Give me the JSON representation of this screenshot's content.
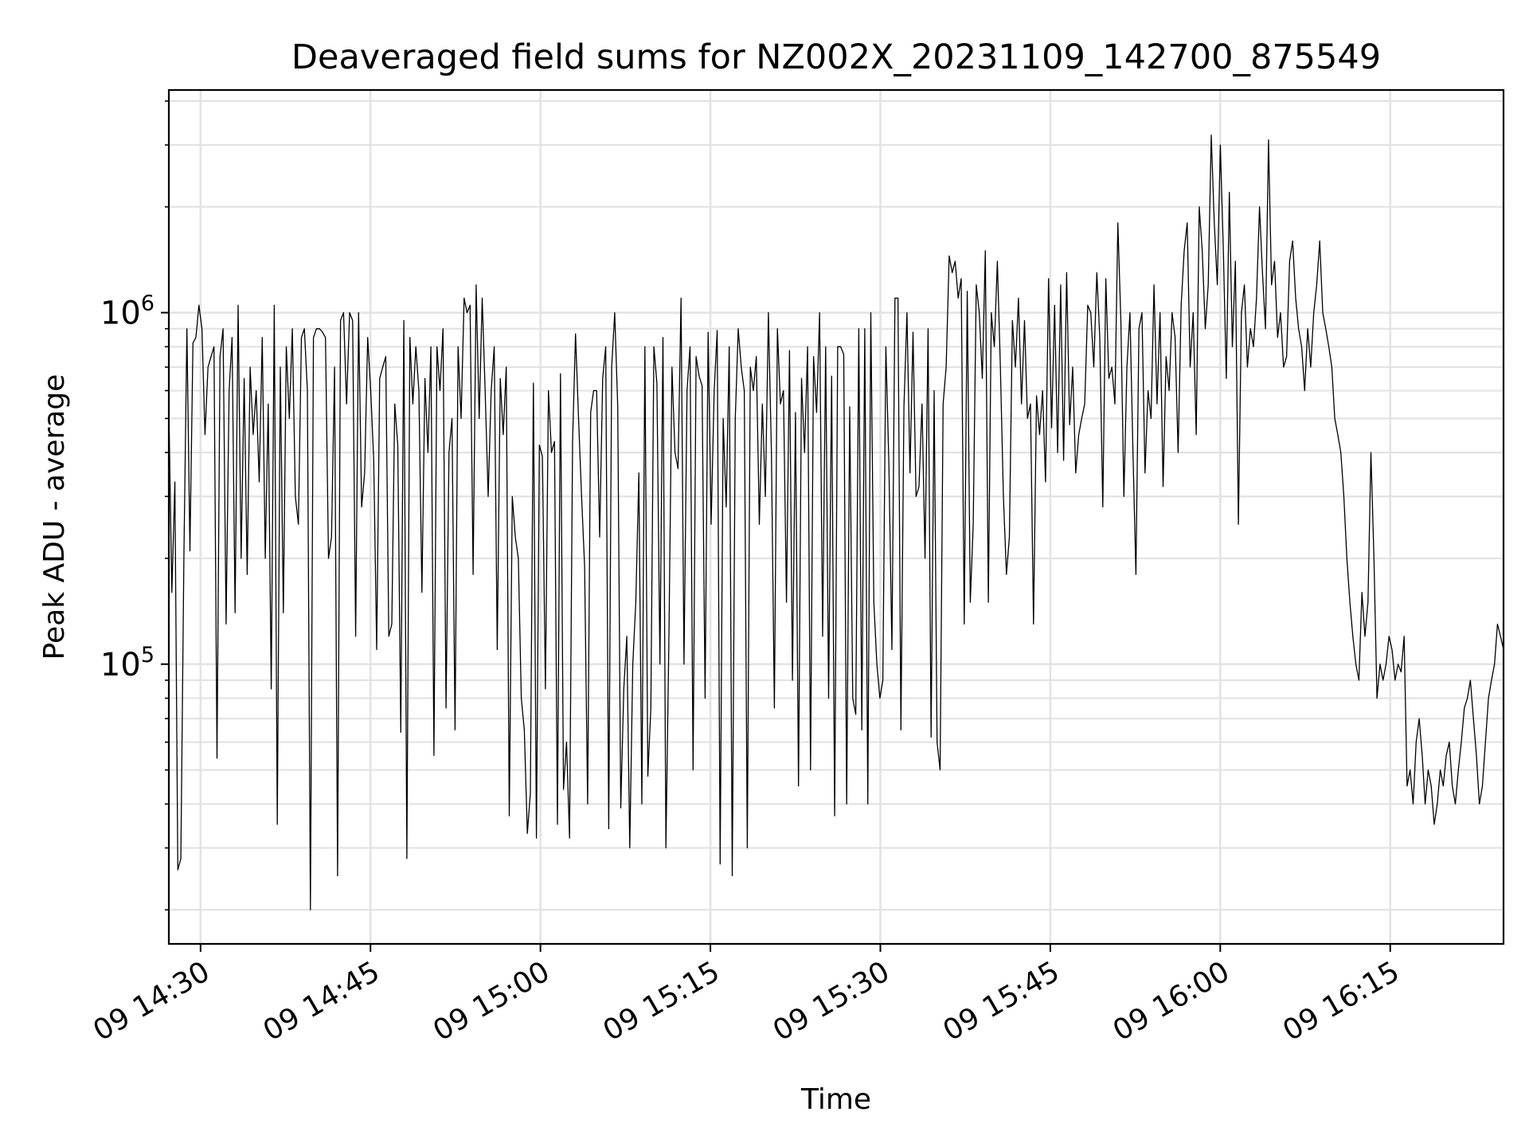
{
  "chart_data": {
    "type": "line",
    "title": "Deaveraged field sums for NZ002X_20231109_142700_875549",
    "xlabel": "Time",
    "ylabel": "Peak ADU - average",
    "xscale": "time",
    "yscale": "log",
    "xlim": [
      "2023-11-09 14:27:12",
      "2023-11-09 16:25:00"
    ],
    "ylim": [
      16000,
      4300000
    ],
    "grid": true,
    "legend": "none",
    "line_color": "#000000",
    "x_ticks": [
      {
        "time": "2023-11-09 14:30",
        "label": "09 14:30"
      },
      {
        "time": "2023-11-09 14:45",
        "label": "09 14:45"
      },
      {
        "time": "2023-11-09 15:00",
        "label": "09 15:00"
      },
      {
        "time": "2023-11-09 15:15",
        "label": "09 15:15"
      },
      {
        "time": "2023-11-09 15:30",
        "label": "09 15:30"
      },
      {
        "time": "2023-11-09 15:45",
        "label": "09 15:45"
      },
      {
        "time": "2023-11-09 16:00",
        "label": "09 16:00"
      },
      {
        "time": "2023-11-09 16:15",
        "label": "09 16:15"
      }
    ],
    "y_ticks": [
      {
        "value": 100000,
        "base": "10",
        "exp": "5"
      },
      {
        "value": 1000000,
        "base": "10",
        "exp": "6"
      }
    ],
    "series": [
      {
        "start": "2023-11-09 14:27:12",
        "end": "2023-11-09 16:25:00",
        "values": [
          540000,
          160000,
          330000,
          26000,
          28000,
          200000,
          900000,
          210000,
          820000,
          850000,
          1050000,
          900000,
          450000,
          700000,
          750000,
          800000,
          54000,
          750000,
          900000,
          130000,
          600000,
          850000,
          140000,
          1050000,
          200000,
          650000,
          180000,
          700000,
          450000,
          600000,
          330000,
          850000,
          200000,
          550000,
          85000,
          1050000,
          35000,
          700000,
          140000,
          800000,
          500000,
          900000,
          300000,
          250000,
          850000,
          900000,
          600000,
          20000,
          850000,
          900000,
          900000,
          880000,
          850000,
          200000,
          230000,
          700000,
          25000,
          950000,
          1000000,
          550000,
          1000000,
          950000,
          120000,
          1000000,
          280000,
          350000,
          850000,
          600000,
          380000,
          110000,
          650000,
          700000,
          750000,
          120000,
          130000,
          550000,
          420000,
          64000,
          950000,
          28000,
          850000,
          550000,
          800000,
          600000,
          160000,
          650000,
          400000,
          800000,
          55000,
          800000,
          600000,
          900000,
          75000,
          400000,
          500000,
          65000,
          800000,
          500000,
          1100000,
          1000000,
          1050000,
          180000,
          1200000,
          500000,
          1100000,
          600000,
          300000,
          600000,
          800000,
          110000,
          650000,
          450000,
          700000,
          37000,
          300000,
          230000,
          200000,
          80000,
          65000,
          33000,
          43000,
          630000,
          32000,
          420000,
          390000,
          85000,
          600000,
          400000,
          430000,
          35000,
          670000,
          44000,
          60000,
          32000,
          430000,
          870000,
          500000,
          300000,
          190000,
          40000,
          520000,
          600000,
          600000,
          230000,
          650000,
          800000,
          34000,
          700000,
          1000000,
          540000,
          39000,
          85000,
          120000,
          30000,
          100000,
          150000,
          350000,
          40000,
          800000,
          48000,
          75000,
          800000,
          630000,
          100000,
          850000,
          30000,
          120000,
          700000,
          400000,
          360000,
          1100000,
          100000,
          600000,
          800000,
          50000,
          750000,
          660000,
          620000,
          80000,
          880000,
          250000,
          600000,
          890000,
          27000,
          500000,
          280000,
          800000,
          25000,
          500000,
          900000,
          700000,
          600000,
          30000,
          700000,
          600000,
          750000,
          250000,
          550000,
          300000,
          1000000,
          400000,
          75000,
          900000,
          550000,
          600000,
          150000,
          780000,
          90000,
          520000,
          45000,
          650000,
          400000,
          800000,
          50000,
          750000,
          520000,
          1000000,
          120000,
          800000,
          80000,
          660000,
          37000,
          800000,
          800000,
          760000,
          40000,
          540000,
          80000,
          72000,
          900000,
          65000,
          900000,
          40000,
          1000000,
          150000,
          100000,
          80000,
          90000,
          800000,
          370000,
          110000,
          1100000,
          1100000,
          65000,
          540000,
          1000000,
          350000,
          880000,
          300000,
          320000,
          550000,
          200000,
          900000,
          62000,
          600000,
          60000,
          50000,
          550000,
          700000,
          1450000,
          1300000,
          1400000,
          1100000,
          1250000,
          130000,
          1150000,
          150000,
          250000,
          1200000,
          1000000,
          650000,
          1500000,
          150000,
          1000000,
          800000,
          1400000,
          700000,
          300000,
          180000,
          230000,
          950000,
          700000,
          1100000,
          550000,
          950000,
          500000,
          550000,
          130000,
          580000,
          450000,
          600000,
          330000,
          1250000,
          470000,
          1050000,
          400000,
          1200000,
          380000,
          1300000,
          480000,
          700000,
          350000,
          450000,
          500000,
          550000,
          1050000,
          1000000,
          700000,
          1300000,
          850000,
          280000,
          1250000,
          650000,
          700000,
          550000,
          1800000,
          950000,
          300000,
          700000,
          1000000,
          400000,
          180000,
          900000,
          1000000,
          350000,
          600000,
          500000,
          1200000,
          550000,
          1000000,
          320000,
          750000,
          600000,
          1000000,
          850000,
          400000,
          1050000,
          1500000,
          1800000,
          700000,
          1000000,
          450000,
          2000000,
          1500000,
          900000,
          1200000,
          3200000,
          1800000,
          1200000,
          3000000,
          1500000,
          650000,
          2200000,
          800000,
          1400000,
          250000,
          1000000,
          1200000,
          700000,
          900000,
          800000,
          1100000,
          2000000,
          1300000,
          900000,
          3100000,
          1200000,
          1400000,
          850000,
          1000000,
          700000,
          750000,
          1400000,
          1600000,
          1100000,
          900000,
          800000,
          600000,
          900000,
          700000,
          1000000,
          1200000,
          1600000,
          1000000,
          900000,
          800000,
          700000,
          500000,
          450000,
          400000,
          300000,
          200000,
          150000,
          120000,
          100000,
          90000,
          160000,
          120000,
          150000,
          400000,
          200000,
          80000,
          100000,
          90000,
          100000,
          120000,
          110000,
          90000,
          100000,
          95000,
          120000,
          45000,
          50000,
          40000,
          60000,
          70000,
          55000,
          40000,
          50000,
          45000,
          35000,
          40000,
          50000,
          45000,
          55000,
          60000,
          45000,
          40000,
          50000,
          60000,
          75000,
          80000,
          90000,
          70000,
          55000,
          40000,
          45000,
          60000,
          80000,
          90000,
          100000,
          130000,
          120000,
          110000
        ]
      }
    ]
  }
}
